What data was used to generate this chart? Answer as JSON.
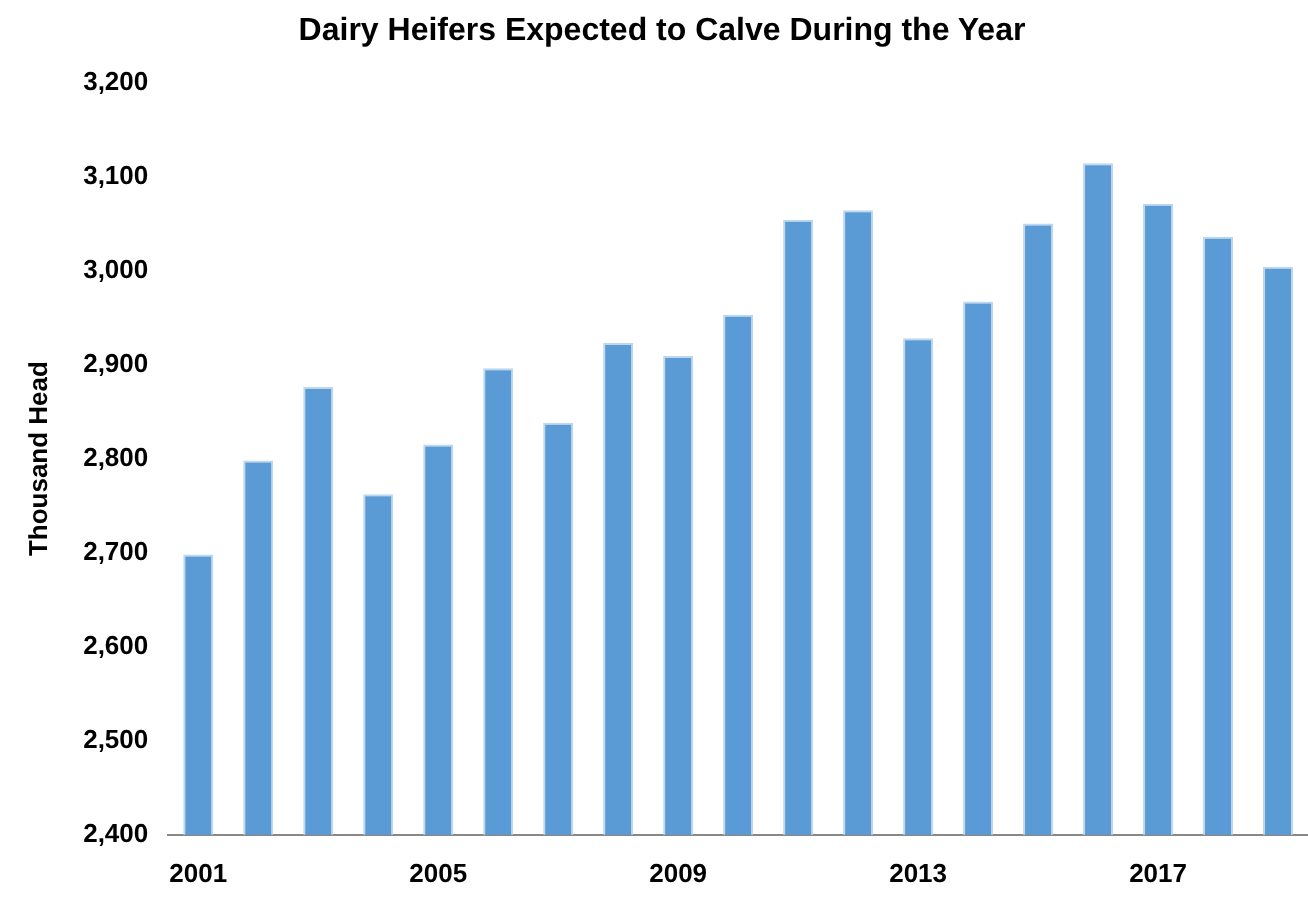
{
  "chart_data": {
    "type": "bar",
    "title": "Dairy Heifers Expected to Calve During the Year",
    "ylabel": "Thousand Head",
    "categories": [
      "2001",
      null,
      null,
      null,
      "2005",
      null,
      null,
      null,
      "2009",
      null,
      null,
      null,
      "2013",
      null,
      null,
      null,
      "2017",
      null,
      null
    ],
    "values": [
      2698,
      2798,
      2876,
      2762,
      2815,
      2896,
      2838,
      2923,
      2909,
      2953,
      3054,
      3064,
      2928,
      2967,
      3050,
      3114,
      3071,
      3036,
      3004
    ],
    "color": "#5b9bd5",
    "ylim": [
      2400,
      3200
    ],
    "yticks": [
      {
        "value": 2400,
        "label": "2,400"
      },
      {
        "value": 2500,
        "label": "2,500"
      },
      {
        "value": 2600,
        "label": "2,600"
      },
      {
        "value": 2700,
        "label": "2,700"
      },
      {
        "value": 2800,
        "label": "2,800"
      },
      {
        "value": 2900,
        "label": "2,900"
      },
      {
        "value": 3000,
        "label": "3,000"
      },
      {
        "value": 3100,
        "label": "3,100"
      },
      {
        "value": 3200,
        "label": "3,200"
      }
    ],
    "grid": false
  }
}
